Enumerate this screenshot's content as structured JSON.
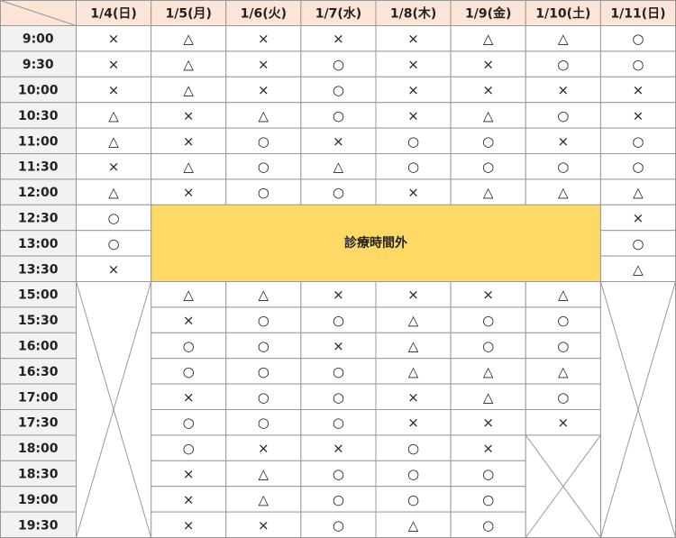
{
  "header": {
    "dates": [
      "1/4(日)",
      "1/5(月)",
      "1/6(火)",
      "1/7(水)",
      "1/8(木)",
      "1/9(金)",
      "1/10(土)",
      "1/11(日)"
    ]
  },
  "closed_label": "診療時間外",
  "rows": [
    {
      "time": "9:00",
      "cells": [
        "×",
        "△",
        "×",
        "×",
        "×",
        "△",
        "△",
        "○"
      ]
    },
    {
      "time": "9:30",
      "cells": [
        "×",
        "△",
        "×",
        "○",
        "×",
        "×",
        "○",
        "○"
      ]
    },
    {
      "time": "10:00",
      "cells": [
        "×",
        "△",
        "×",
        "○",
        "×",
        "×",
        "×",
        "×"
      ]
    },
    {
      "time": "10:30",
      "cells": [
        "△",
        "×",
        "△",
        "○",
        "×",
        "△",
        "○",
        "×"
      ]
    },
    {
      "time": "11:00",
      "cells": [
        "△",
        "×",
        "○",
        "×",
        "○",
        "○",
        "×",
        "○"
      ]
    },
    {
      "time": "11:30",
      "cells": [
        "×",
        "△",
        "○",
        "△",
        "○",
        "○",
        "○",
        "○"
      ]
    },
    {
      "time": "12:00",
      "cells": [
        "△",
        "×",
        "○",
        "○",
        "×",
        "△",
        "△",
        "△"
      ]
    },
    {
      "time": "12:30",
      "cells": [
        "○",
        null,
        null,
        null,
        null,
        null,
        null,
        "×"
      ]
    },
    {
      "time": "13:00",
      "cells": [
        "○",
        null,
        null,
        null,
        null,
        null,
        null,
        "○"
      ]
    },
    {
      "time": "13:30",
      "cells": [
        "×",
        null,
        null,
        null,
        null,
        null,
        null,
        "△"
      ]
    },
    {
      "time": "15:00",
      "cells": [
        null,
        "△",
        "△",
        "×",
        "×",
        "×",
        "△",
        null
      ]
    },
    {
      "time": "15:30",
      "cells": [
        null,
        "×",
        "○",
        "○",
        "△",
        "○",
        "○",
        null
      ]
    },
    {
      "time": "16:00",
      "cells": [
        null,
        "○",
        "○",
        "×",
        "△",
        "○",
        "○",
        null
      ]
    },
    {
      "time": "16:30",
      "cells": [
        null,
        "○",
        "○",
        "○",
        "△",
        "△",
        "△",
        null
      ]
    },
    {
      "time": "17:00",
      "cells": [
        null,
        "×",
        "○",
        "○",
        "×",
        "△",
        "○",
        null
      ]
    },
    {
      "time": "17:30",
      "cells": [
        null,
        "○",
        "○",
        "○",
        "×",
        "×",
        "×",
        null
      ]
    },
    {
      "time": "18:00",
      "cells": [
        null,
        "○",
        "×",
        "×",
        "○",
        "×",
        null,
        null
      ]
    },
    {
      "time": "18:30",
      "cells": [
        null,
        "×",
        "△",
        "○",
        "○",
        "○",
        null,
        null
      ]
    },
    {
      "time": "19:00",
      "cells": [
        null,
        "×",
        "△",
        "○",
        "○",
        "○",
        null,
        null
      ]
    },
    {
      "time": "19:30",
      "cells": [
        null,
        "×",
        "×",
        "○",
        "△",
        "○",
        null,
        null
      ]
    }
  ]
}
